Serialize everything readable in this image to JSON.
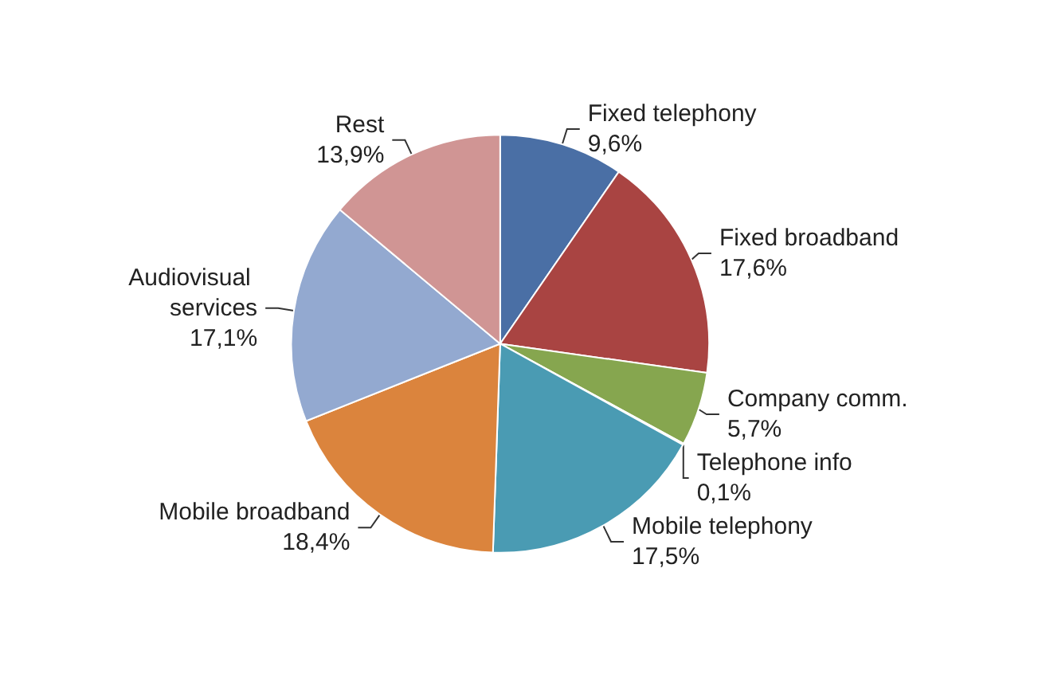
{
  "chart_data": {
    "type": "pie",
    "categories": [
      "Fixed telephony",
      "Fixed broadband",
      "Company comm.",
      "Telephone info",
      "Mobile telephony",
      "Mobile broadband",
      "Audiovisual services",
      "Rest"
    ],
    "values": [
      9.6,
      17.6,
      5.7,
      0.1,
      17.5,
      18.4,
      17.1,
      13.9
    ],
    "value_labels": [
      "9,6%",
      "17,6%",
      "5,7%",
      "0,1%",
      "17,5%",
      "18,4%",
      "17,1%",
      "13,9%"
    ],
    "colors": [
      "#4a6fa5",
      "#a94442",
      "#86a64f",
      "#7b5ea7",
      "#4a9bb3",
      "#db843d",
      "#93a9d0",
      "#d09594"
    ]
  }
}
